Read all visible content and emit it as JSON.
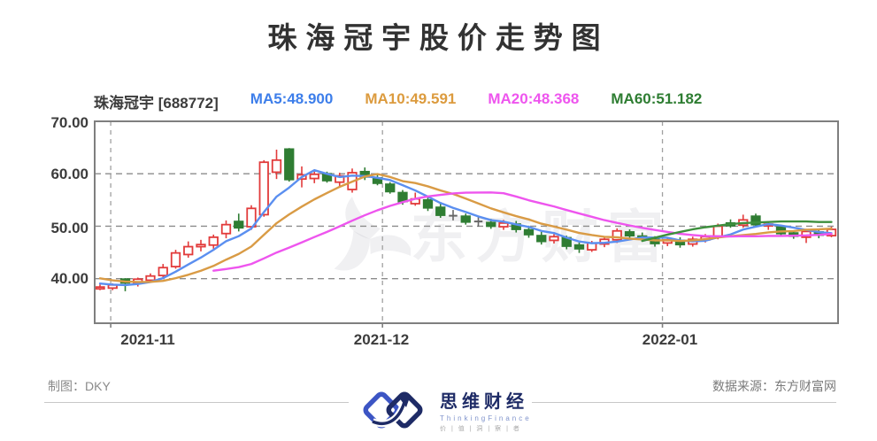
{
  "page": {
    "title": "珠海冠宇股价走势图"
  },
  "legend": {
    "stock": {
      "label": "珠海冠宇 [688772]",
      "color": "#3c3c3c"
    },
    "items": [
      {
        "id": "ma5",
        "label": "MA5:48.900",
        "color": "#3d7eea"
      },
      {
        "id": "ma10",
        "label": "MA10:49.591",
        "color": "#dc9b3e"
      },
      {
        "id": "ma20",
        "label": "MA20:48.368",
        "color": "#ee55ee"
      },
      {
        "id": "ma60",
        "label": "MA60:51.182",
        "color": "#2e7d32"
      }
    ]
  },
  "axes": {
    "y_ticks": [
      "70.00",
      "60.00",
      "50.00",
      "40.00"
    ],
    "x_ticks": [
      "2021-11",
      "2021-12",
      "2022-01"
    ]
  },
  "watermark": {
    "text": "东方财富"
  },
  "footer": {
    "credit": "制图：DKY",
    "source": "数据来源：东方财富网",
    "logo": {
      "name": "思维财经",
      "subtitle": "ThinkingFinance",
      "tagline": "价 | 值 | 洞 | 察 | 者"
    }
  },
  "chart_data": {
    "type": "candlestick",
    "symbol": "珠海冠宇",
    "code": "688772",
    "title": "珠海冠宇股价走势图",
    "ylim": [
      31.5,
      70
    ],
    "y_gridline_values": [
      70,
      60,
      50,
      40
    ],
    "y_tick_labels": [
      "70.00",
      "60.00",
      "50.00",
      "40.00"
    ],
    "x_gridline_indices": [
      0.85,
      22.4,
      44.6
    ],
    "x_tick_labels": [
      "2021-11",
      "2021-12",
      "2022-01"
    ],
    "legend_values": {
      "ma5": 48.9,
      "ma10": 49.591,
      "ma20": 48.368,
      "ma60": 51.182
    },
    "candles_format": [
      "open",
      "high",
      "low",
      "close"
    ],
    "candles": [
      [
        38.2,
        38.9,
        37.8,
        38.4
      ],
      [
        38.2,
        39.1,
        37.8,
        38.8
      ],
      [
        39.9,
        40.1,
        37.6,
        39.2
      ],
      [
        39.1,
        40.2,
        38.5,
        39.9
      ],
      [
        39.7,
        41.0,
        39.3,
        40.5
      ],
      [
        40.6,
        42.8,
        40.2,
        42.1
      ],
      [
        42.3,
        45.5,
        41.9,
        44.9
      ],
      [
        44.6,
        47.1,
        44.0,
        46.1
      ],
      [
        46.1,
        47.4,
        45.2,
        46.5
      ],
      [
        46.4,
        48.4,
        45.7,
        47.9
      ],
      [
        48.6,
        51.1,
        47.7,
        50.3
      ],
      [
        50.9,
        52.4,
        49.0,
        49.7
      ],
      [
        49.9,
        54.0,
        49.3,
        53.4
      ],
      [
        52.2,
        62.6,
        51.8,
        62.2
      ],
      [
        60.3,
        64.6,
        59.0,
        62.6
      ],
      [
        64.7,
        64.9,
        58.5,
        58.9
      ],
      [
        59.0,
        61.4,
        57.4,
        59.8
      ],
      [
        59.1,
        60.6,
        58.2,
        59.9
      ],
      [
        60.0,
        60.4,
        58.3,
        58.7
      ],
      [
        58.4,
        60.2,
        57.5,
        59.6
      ],
      [
        57.0,
        61.0,
        56.4,
        60.2
      ],
      [
        60.4,
        61.2,
        58.8,
        59.4
      ],
      [
        59.2,
        59.9,
        57.8,
        58.2
      ],
      [
        58.0,
        58.4,
        56.2,
        56.6
      ],
      [
        56.4,
        56.9,
        54.1,
        54.7
      ],
      [
        54.3,
        56.4,
        53.9,
        55.2
      ],
      [
        55.0,
        55.8,
        52.9,
        53.5
      ],
      [
        53.6,
        54.6,
        51.6,
        52.1
      ],
      [
        52.0,
        53.1,
        51.1,
        52.0
      ],
      [
        51.9,
        52.4,
        50.3,
        50.8
      ],
      [
        50.9,
        52.0,
        49.9,
        50.9
      ],
      [
        50.7,
        51.4,
        49.5,
        50.0
      ],
      [
        49.9,
        51.2,
        49.3,
        50.6
      ],
      [
        50.4,
        51.0,
        48.8,
        49.4
      ],
      [
        49.3,
        50.1,
        47.8,
        48.4
      ],
      [
        48.2,
        48.9,
        46.5,
        47.1
      ],
      [
        47.3,
        48.5,
        46.7,
        48.0
      ],
      [
        47.8,
        48.2,
        45.6,
        46.2
      ],
      [
        46.4,
        46.9,
        44.9,
        45.7
      ],
      [
        45.5,
        47.2,
        45.1,
        46.8
      ],
      [
        46.6,
        47.9,
        46.0,
        47.5
      ],
      [
        47.4,
        49.6,
        46.8,
        49.1
      ],
      [
        48.9,
        49.4,
        47.6,
        48.2
      ],
      [
        48.1,
        48.8,
        47.1,
        47.6
      ],
      [
        47.7,
        48.1,
        46.1,
        46.7
      ],
      [
        46.8,
        47.8,
        46.2,
        47.4
      ],
      [
        47.3,
        47.9,
        45.9,
        46.5
      ],
      [
        46.6,
        48.0,
        46.1,
        47.5
      ],
      [
        47.4,
        48.5,
        46.9,
        48.0
      ],
      [
        48.1,
        50.5,
        47.5,
        50.0
      ],
      [
        50.6,
        51.3,
        49.7,
        50.1
      ],
      [
        50.2,
        52.2,
        49.7,
        51.2
      ],
      [
        51.9,
        52.4,
        49.8,
        50.3
      ],
      [
        50.1,
        51.0,
        49.3,
        50.4
      ],
      [
        49.8,
        50.2,
        48.1,
        48.6
      ],
      [
        48.7,
        49.2,
        47.6,
        48.1
      ],
      [
        47.9,
        49.5,
        46.8,
        49.0
      ],
      [
        48.9,
        49.4,
        47.7,
        48.3
      ],
      [
        48.2,
        49.9,
        47.9,
        49.4
      ]
    ],
    "ma_seed_closes": [
      44.0,
      42.5,
      41.5,
      40.8,
      40.3,
      40.1,
      39.8,
      39.6,
      38.9,
      38.6
    ],
    "ma20_start_index": 9,
    "ma60_series": {
      "start_index": 43,
      "values": [
        47.2,
        47.8,
        48.4,
        48.9,
        49.4,
        49.8,
        50.1,
        50.4,
        50.6,
        50.7,
        50.8,
        50.9,
        50.9,
        50.9,
        50.8,
        50.8
      ]
    },
    "colors": {
      "up": "#e23b3b",
      "down": "#2f7d33",
      "flat": "#666666",
      "ma5": "#5b8ff0",
      "ma10": "#d99b45",
      "ma20": "#ee55ee",
      "ma60": "#3d8f3d",
      "grid": "#8c8c8c",
      "vgrid": "#a0a0a0",
      "border": "#7f7f7f"
    }
  }
}
